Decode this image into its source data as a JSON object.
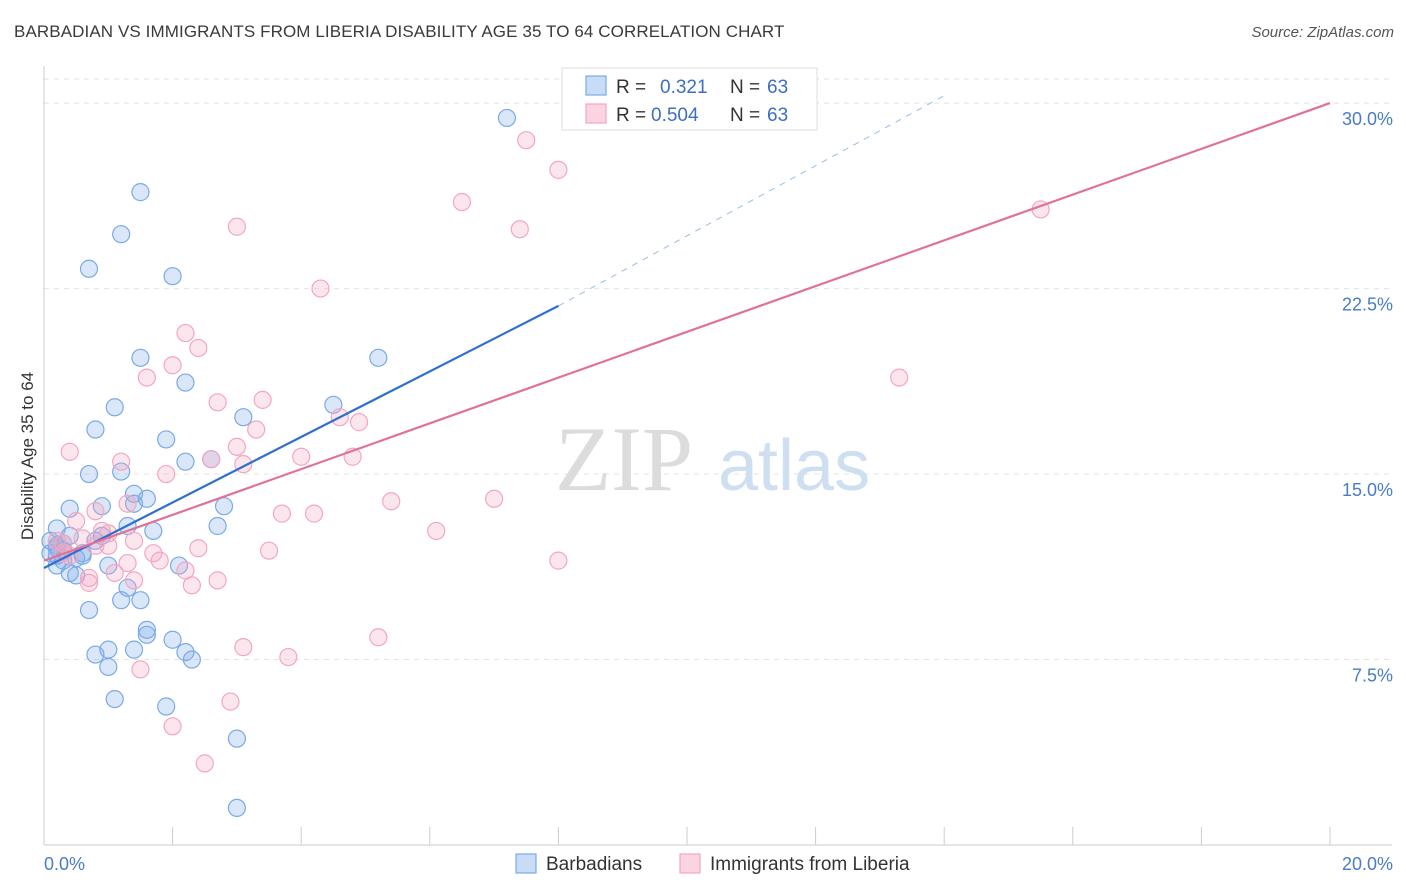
{
  "header": {
    "title": "BARBADIAN VS IMMIGRANTS FROM LIBERIA DISABILITY AGE 35 TO 64 CORRELATION CHART",
    "source": "Source: ZipAtlas.com"
  },
  "watermark": {
    "zip": "ZIP",
    "atlas": "atlas"
  },
  "chart_data": {
    "type": "scatter",
    "ylabel": "Disability Age 35 to 64",
    "xlim": [
      0,
      20
    ],
    "ylim": [
      0,
      31.5
    ],
    "y_ticks": [
      {
        "value": 7.5,
        "label": "7.5%"
      },
      {
        "value": 15,
        "label": "15.0%"
      },
      {
        "value": 22.5,
        "label": "22.5%"
      },
      {
        "value": 30,
        "label": "30.0%"
      }
    ],
    "x_tick_labels": {
      "min": "0.0%",
      "max": "20.0%"
    },
    "grid": true,
    "legend_position": "top-center",
    "stats": [
      {
        "r_label": "R =",
        "r_value": "0.321",
        "n_label": "N =",
        "n_value": "63"
      },
      {
        "r_label": "R =",
        "r_value": "0.504",
        "n_label": "N =",
        "n_value": "63"
      }
    ],
    "series": [
      {
        "name": "Barbadians",
        "color": "#7aaae8",
        "line_color": "#2f6fcf",
        "trend": {
          "x0": 0,
          "y0": 11.2,
          "x1": 8.0,
          "y1": 21.8,
          "dashed_to_x": 14.0,
          "dashed_to_y": 30.3
        },
        "points": [
          [
            7.2,
            29.4
          ],
          [
            1.5,
            26.4
          ],
          [
            1.2,
            24.7
          ],
          [
            0.7,
            23.3
          ],
          [
            2.0,
            23.0
          ],
          [
            5.2,
            19.7
          ],
          [
            1.5,
            19.7
          ],
          [
            2.2,
            18.7
          ],
          [
            1.1,
            17.7
          ],
          [
            4.5,
            17.8
          ],
          [
            3.1,
            17.3
          ],
          [
            0.8,
            16.8
          ],
          [
            1.9,
            16.4
          ],
          [
            2.6,
            15.6
          ],
          [
            2.2,
            15.5
          ],
          [
            1.2,
            15.1
          ],
          [
            0.7,
            15.0
          ],
          [
            1.4,
            14.2
          ],
          [
            1.6,
            14.0
          ],
          [
            1.4,
            13.8
          ],
          [
            2.8,
            13.7
          ],
          [
            0.4,
            13.6
          ],
          [
            0.9,
            13.7
          ],
          [
            2.7,
            12.9
          ],
          [
            1.3,
            12.9
          ],
          [
            1.7,
            12.7
          ],
          [
            0.2,
            12.8
          ],
          [
            0.4,
            12.5
          ],
          [
            0.9,
            12.5
          ],
          [
            0.8,
            12.3
          ],
          [
            0.1,
            12.3
          ],
          [
            0.2,
            12.1
          ],
          [
            0.3,
            11.9
          ],
          [
            0.6,
            11.8
          ],
          [
            0.1,
            11.8
          ],
          [
            0.2,
            11.7
          ],
          [
            0.5,
            11.6
          ],
          [
            0.3,
            11.5
          ],
          [
            0.2,
            11.3
          ],
          [
            1.0,
            11.3
          ],
          [
            2.1,
            11.3
          ],
          [
            0.4,
            11.0
          ],
          [
            0.5,
            10.9
          ],
          [
            1.3,
            10.4
          ],
          [
            1.5,
            9.9
          ],
          [
            1.2,
            9.9
          ],
          [
            0.7,
            9.5
          ],
          [
            1.6,
            8.7
          ],
          [
            1.6,
            8.5
          ],
          [
            2.0,
            8.3
          ],
          [
            1.0,
            7.9
          ],
          [
            2.2,
            7.8
          ],
          [
            0.8,
            7.7
          ],
          [
            2.3,
            7.5
          ],
          [
            1.4,
            7.9
          ],
          [
            1.0,
            7.2
          ],
          [
            1.1,
            5.9
          ],
          [
            1.9,
            5.6
          ],
          [
            3.0,
            4.3
          ],
          [
            3.0,
            1.5
          ],
          [
            0.2,
            12.0
          ],
          [
            0.3,
            12.2
          ],
          [
            0.6,
            11.7
          ]
        ]
      },
      {
        "name": "Immigrants from Liberia",
        "color": "#f4a6c0",
        "line_color": "#e0729a",
        "trend": {
          "x0": 0,
          "y0": 11.5,
          "x1": 20.0,
          "y1": 30.0
        },
        "points": [
          [
            7.5,
            28.5
          ],
          [
            8.0,
            27.3
          ],
          [
            6.5,
            26.0
          ],
          [
            15.5,
            25.7
          ],
          [
            3.0,
            25.0
          ],
          [
            7.4,
            24.9
          ],
          [
            4.3,
            22.5
          ],
          [
            2.2,
            20.7
          ],
          [
            2.4,
            20.1
          ],
          [
            2.0,
            19.4
          ],
          [
            1.6,
            18.9
          ],
          [
            13.3,
            18.9
          ],
          [
            3.4,
            18.0
          ],
          [
            2.7,
            17.9
          ],
          [
            4.6,
            17.3
          ],
          [
            4.9,
            17.1
          ],
          [
            3.3,
            16.8
          ],
          [
            3.0,
            16.1
          ],
          [
            0.4,
            15.9
          ],
          [
            4.0,
            15.7
          ],
          [
            4.8,
            15.7
          ],
          [
            1.2,
            15.5
          ],
          [
            2.6,
            15.6
          ],
          [
            3.1,
            15.4
          ],
          [
            1.9,
            15.0
          ],
          [
            7.0,
            14.0
          ],
          [
            5.4,
            13.9
          ],
          [
            1.3,
            13.8
          ],
          [
            0.8,
            13.5
          ],
          [
            3.7,
            13.4
          ],
          [
            4.2,
            13.4
          ],
          [
            0.5,
            13.1
          ],
          [
            0.9,
            12.7
          ],
          [
            1.0,
            12.6
          ],
          [
            6.1,
            12.7
          ],
          [
            1.4,
            12.3
          ],
          [
            0.2,
            12.3
          ],
          [
            0.8,
            12.1
          ],
          [
            2.4,
            12.0
          ],
          [
            0.3,
            12.2
          ],
          [
            3.5,
            11.9
          ],
          [
            1.7,
            11.8
          ],
          [
            0.4,
            11.7
          ],
          [
            1.8,
            11.5
          ],
          [
            8.0,
            11.5
          ],
          [
            1.3,
            11.4
          ],
          [
            2.2,
            11.1
          ],
          [
            1.1,
            11.0
          ],
          [
            0.7,
            10.8
          ],
          [
            0.7,
            10.6
          ],
          [
            2.7,
            10.7
          ],
          [
            1.4,
            10.7
          ],
          [
            2.3,
            10.5
          ],
          [
            5.2,
            8.4
          ],
          [
            3.1,
            8.0
          ],
          [
            3.8,
            7.6
          ],
          [
            1.5,
            7.1
          ],
          [
            2.9,
            5.8
          ],
          [
            2.0,
            4.8
          ],
          [
            2.5,
            3.3
          ],
          [
            0.3,
            11.8
          ],
          [
            1.0,
            12.1
          ],
          [
            0.6,
            12.4
          ]
        ]
      }
    ]
  }
}
